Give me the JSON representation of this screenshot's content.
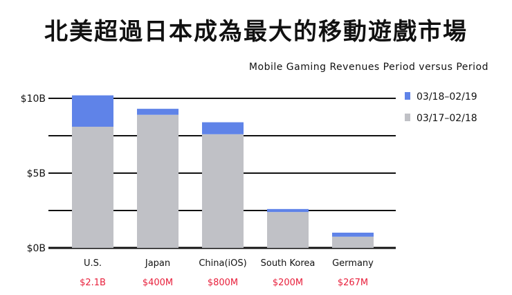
{
  "chart_data": {
    "type": "bar",
    "stacked": true,
    "title": "北美超過日本成為最大的移動遊戲市場",
    "subtitle": "Mobile Gaming Revenues Period versus Period",
    "categories": [
      "U.S.",
      "Japan",
      "China(iOS)",
      "South Korea",
      "Germany"
    ],
    "series": [
      {
        "name": "03/17-02/18",
        "color": "#c0c1c6",
        "values": [
          8.1,
          8.9,
          7.6,
          2.4,
          0.75
        ]
      },
      {
        "name": "03/18-02/19",
        "color": "#5f83e8",
        "values": [
          2.1,
          0.4,
          0.8,
          0.2,
          0.27
        ]
      }
    ],
    "growth_labels": [
      "$2.1B",
      "$400M",
      "$800M",
      "$200M",
      "$267M"
    ],
    "growth_label_color": "#e8203c",
    "yticks": [
      {
        "value": 0,
        "label": "$0B"
      },
      {
        "value": 5,
        "label": "$5B"
      },
      {
        "value": 10,
        "label": "$10B"
      }
    ],
    "gridlines": [
      0,
      2.5,
      5,
      7.5,
      10
    ],
    "ylim": [
      0,
      10
    ],
    "ylabel": "",
    "xlabel": "",
    "legend": "top-right",
    "legend_entries": [
      "03/18–02/19",
      "03/17–02/18"
    ]
  }
}
